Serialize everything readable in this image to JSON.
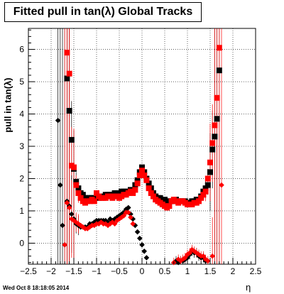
{
  "chart_data": {
    "type": "scatter",
    "title": "Fitted pull in tan(λ)  Global Tracks",
    "xlabel": "η",
    "ylabel": "pull in tan(λ)",
    "xlim": [
      -2.5,
      2.5
    ],
    "ylim": [
      -0.65,
      6.65
    ],
    "x_ticks": [
      -2.5,
      -2,
      -1.5,
      -1,
      -0.5,
      0,
      0.5,
      1,
      1.5,
      2,
      2.5
    ],
    "x_tick_labels": [
      "−2.5",
      "−2",
      "−1.5",
      "−1",
      "−0.5",
      "0",
      "0.5",
      "1",
      "1.5",
      "2",
      "2.5"
    ],
    "y_ticks": [
      0,
      1,
      2,
      3,
      4,
      5,
      6
    ],
    "y_tick_labels": [
      "0",
      "1",
      "2",
      "3",
      "4",
      "5",
      "6"
    ],
    "grid": true,
    "series": [
      {
        "color": "#000000",
        "marker": "square",
        "points": [
          [
            -1.65,
            5.1
          ],
          [
            -1.6,
            4.1
          ],
          [
            -1.55,
            3.2
          ],
          [
            -1.5,
            2.3
          ],
          [
            -1.45,
            1.9
          ],
          [
            -1.4,
            1.7
          ],
          [
            -1.35,
            1.55
          ],
          [
            -1.3,
            1.5
          ],
          [
            -1.25,
            1.4
          ],
          [
            -1.2,
            1.4
          ],
          [
            -1.15,
            1.4
          ],
          [
            -1.1,
            1.4
          ],
          [
            -1.05,
            1.4
          ],
          [
            -1.0,
            1.5
          ],
          [
            -0.95,
            1.4
          ],
          [
            -0.9,
            1.45
          ],
          [
            -0.85,
            1.45
          ],
          [
            -0.8,
            1.5
          ],
          [
            -0.75,
            1.5
          ],
          [
            -0.7,
            1.5
          ],
          [
            -0.65,
            1.5
          ],
          [
            -0.6,
            1.55
          ],
          [
            -0.55,
            1.55
          ],
          [
            -0.5,
            1.5
          ],
          [
            -0.45,
            1.6
          ],
          [
            -0.4,
            1.6
          ],
          [
            -0.35,
            1.6
          ],
          [
            -0.3,
            1.6
          ],
          [
            -0.25,
            1.65
          ],
          [
            -0.2,
            1.65
          ],
          [
            -0.15,
            1.8
          ],
          [
            -0.1,
            1.95
          ],
          [
            -0.05,
            2.2
          ],
          [
            0.0,
            2.35
          ],
          [
            0.05,
            2.2
          ],
          [
            0.1,
            2.0
          ],
          [
            0.15,
            1.85
          ],
          [
            0.2,
            1.7
          ],
          [
            0.25,
            1.55
          ],
          [
            0.3,
            1.45
          ],
          [
            0.35,
            1.4
          ],
          [
            0.4,
            1.4
          ],
          [
            0.45,
            1.35
          ],
          [
            0.5,
            1.35
          ],
          [
            0.55,
            1.3
          ],
          [
            0.6,
            1.3
          ],
          [
            0.65,
            1.3
          ],
          [
            0.7,
            1.3
          ],
          [
            0.75,
            1.35
          ],
          [
            0.8,
            1.3
          ],
          [
            0.85,
            1.3
          ],
          [
            0.9,
            1.3
          ],
          [
            0.95,
            1.3
          ],
          [
            1.0,
            1.25
          ],
          [
            1.05,
            1.25
          ],
          [
            1.1,
            1.3
          ],
          [
            1.15,
            1.3
          ],
          [
            1.2,
            1.35
          ],
          [
            1.25,
            1.35
          ],
          [
            1.3,
            1.45
          ],
          [
            1.35,
            1.6
          ],
          [
            1.4,
            1.7
          ],
          [
            1.45,
            1.8
          ],
          [
            1.5,
            2.2
          ],
          [
            1.55,
            2.9
          ],
          [
            1.6,
            3.3
          ],
          [
            1.65,
            3.85
          ],
          [
            1.7,
            5.35
          ]
        ]
      },
      {
        "color": "#ff0000",
        "marker": "square",
        "points": [
          [
            -1.65,
            5.9
          ],
          [
            -1.6,
            5.25
          ],
          [
            -1.55,
            2.4
          ],
          [
            -1.5,
            2.35
          ],
          [
            -1.45,
            1.8
          ],
          [
            -1.4,
            1.55
          ],
          [
            -1.35,
            1.4
          ],
          [
            -1.3,
            1.3
          ],
          [
            -1.25,
            1.25
          ],
          [
            -1.2,
            1.3
          ],
          [
            -1.15,
            1.3
          ],
          [
            -1.1,
            1.35
          ],
          [
            -1.05,
            1.3
          ],
          [
            -1.0,
            1.55
          ],
          [
            -0.95,
            1.45
          ],
          [
            -0.9,
            1.4
          ],
          [
            -0.85,
            1.4
          ],
          [
            -0.8,
            1.4
          ],
          [
            -0.75,
            1.45
          ],
          [
            -0.7,
            1.45
          ],
          [
            -0.65,
            1.4
          ],
          [
            -0.6,
            1.45
          ],
          [
            -0.55,
            1.45
          ],
          [
            -0.5,
            1.4
          ],
          [
            -0.45,
            1.45
          ],
          [
            -0.4,
            1.5
          ],
          [
            -0.35,
            1.5
          ],
          [
            -0.3,
            1.55
          ],
          [
            -0.25,
            1.6
          ],
          [
            -0.2,
            1.55
          ],
          [
            -0.15,
            1.65
          ],
          [
            -0.1,
            1.85
          ],
          [
            -0.05,
            2.1
          ],
          [
            0.0,
            2.25
          ],
          [
            0.05,
            2.1
          ],
          [
            0.1,
            1.95
          ],
          [
            0.15,
            1.7
          ],
          [
            0.2,
            1.55
          ],
          [
            0.25,
            1.45
          ],
          [
            0.3,
            1.35
          ],
          [
            0.35,
            1.3
          ],
          [
            0.4,
            1.25
          ],
          [
            0.45,
            1.2
          ],
          [
            0.5,
            1.15
          ],
          [
            0.55,
            1.1
          ],
          [
            0.6,
            1.15
          ],
          [
            0.65,
            1.3
          ],
          [
            0.7,
            1.35
          ],
          [
            0.75,
            1.3
          ],
          [
            0.8,
            1.25
          ],
          [
            0.85,
            1.3
          ],
          [
            0.9,
            1.3
          ],
          [
            0.95,
            1.25
          ],
          [
            1.0,
            1.2
          ],
          [
            1.05,
            1.2
          ],
          [
            1.1,
            1.2
          ],
          [
            1.15,
            1.25
          ],
          [
            1.2,
            1.25
          ],
          [
            1.25,
            1.3
          ],
          [
            1.3,
            1.4
          ],
          [
            1.35,
            1.5
          ],
          [
            1.4,
            1.6
          ],
          [
            1.45,
            2.0
          ],
          [
            1.5,
            2.5
          ],
          [
            1.55,
            3.1
          ],
          [
            1.6,
            3.65
          ],
          [
            1.65,
            4.5
          ],
          [
            1.7,
            6.05
          ]
        ]
      },
      {
        "color": "#000000",
        "marker": "diamond",
        "points": [
          [
            -1.85,
            3.8
          ],
          [
            -1.8,
            1.8
          ],
          [
            -1.75,
            0.55
          ],
          [
            -1.7,
            -0.05
          ],
          [
            -1.65,
            1.3
          ],
          [
            -1.6,
            1.15
          ],
          [
            -1.55,
            0.9
          ],
          [
            -1.5,
            0.75
          ],
          [
            -1.45,
            0.6
          ],
          [
            -1.4,
            0.55
          ],
          [
            -1.35,
            0.5
          ],
          [
            -1.3,
            0.5
          ],
          [
            -1.25,
            0.5
          ],
          [
            -1.2,
            0.5
          ],
          [
            -1.15,
            0.6
          ],
          [
            -1.1,
            0.6
          ],
          [
            -1.05,
            0.65
          ],
          [
            -1.0,
            0.7
          ],
          [
            -0.95,
            0.7
          ],
          [
            -0.9,
            0.7
          ],
          [
            -0.85,
            0.7
          ],
          [
            -0.8,
            0.7
          ],
          [
            -0.75,
            0.65
          ],
          [
            -0.7,
            0.75
          ],
          [
            -0.65,
            0.7
          ],
          [
            -0.6,
            0.75
          ],
          [
            -0.55,
            0.8
          ],
          [
            -0.5,
            0.85
          ],
          [
            -0.45,
            0.9
          ],
          [
            -0.4,
            0.95
          ],
          [
            -0.35,
            1.05
          ],
          [
            -0.3,
            1.1
          ],
          [
            -0.25,
            0.9
          ],
          [
            -0.2,
            0.75
          ],
          [
            -0.15,
            0.55
          ],
          [
            -0.1,
            0.35
          ],
          [
            -0.05,
            0.15
          ],
          [
            0.0,
            -0.05
          ],
          [
            0.05,
            -0.25
          ],
          [
            0.1,
            -0.45
          ],
          [
            0.75,
            -0.55
          ],
          [
            0.8,
            -0.6
          ],
          [
            0.85,
            -0.55
          ],
          [
            0.9,
            -0.55
          ],
          [
            0.95,
            -0.5
          ],
          [
            1.0,
            -0.45
          ],
          [
            1.05,
            -0.35
          ],
          [
            1.1,
            -0.25
          ],
          [
            1.15,
            -0.3
          ],
          [
            1.2,
            -0.3
          ],
          [
            1.25,
            -0.4
          ],
          [
            1.3,
            -0.45
          ],
          [
            1.35,
            -0.45
          ],
          [
            1.4,
            -0.55
          ]
        ]
      },
      {
        "color": "#ff0000",
        "marker": "diamond",
        "points": [
          [
            -1.7,
            -0.05
          ],
          [
            -1.65,
            1.25
          ],
          [
            -1.6,
            1.1
          ],
          [
            -1.55,
            0.75
          ],
          [
            -1.5,
            0.7
          ],
          [
            -1.45,
            0.65
          ],
          [
            -1.4,
            0.6
          ],
          [
            -1.35,
            0.55
          ],
          [
            -1.3,
            0.5
          ],
          [
            -1.25,
            0.45
          ],
          [
            -1.2,
            0.45
          ],
          [
            -1.15,
            0.5
          ],
          [
            -1.1,
            0.55
          ],
          [
            -1.05,
            0.55
          ],
          [
            -1.0,
            0.6
          ],
          [
            -0.95,
            0.6
          ],
          [
            -0.9,
            0.65
          ],
          [
            -0.85,
            0.6
          ],
          [
            -0.8,
            0.6
          ],
          [
            -0.75,
            0.55
          ],
          [
            -0.7,
            0.6
          ],
          [
            -0.65,
            0.65
          ],
          [
            -0.6,
            0.6
          ],
          [
            -0.55,
            0.7
          ],
          [
            -0.5,
            0.75
          ],
          [
            -0.45,
            0.8
          ],
          [
            -0.4,
            0.85
          ],
          [
            -0.35,
            0.95
          ],
          [
            -0.3,
            0.95
          ],
          [
            -0.25,
            0.8
          ],
          [
            -0.2,
            0.6
          ],
          [
            0.7,
            -0.6
          ],
          [
            0.8,
            -0.5
          ],
          [
            0.85,
            -0.55
          ],
          [
            0.9,
            -0.5
          ],
          [
            0.95,
            -0.45
          ],
          [
            1.0,
            -0.35
          ],
          [
            1.05,
            -0.3
          ],
          [
            1.1,
            -0.2
          ],
          [
            1.15,
            -0.25
          ],
          [
            1.2,
            -0.3
          ],
          [
            1.25,
            -0.35
          ],
          [
            1.3,
            -0.4
          ],
          [
            1.35,
            -0.4
          ],
          [
            1.4,
            -0.5
          ],
          [
            1.45,
            -0.55
          ],
          [
            1.55,
            -0.4
          ],
          [
            1.75,
            1.8
          ]
        ]
      }
    ]
  },
  "footer": {
    "datestamp": "Wed Oct  8 18:18:05 2014"
  }
}
